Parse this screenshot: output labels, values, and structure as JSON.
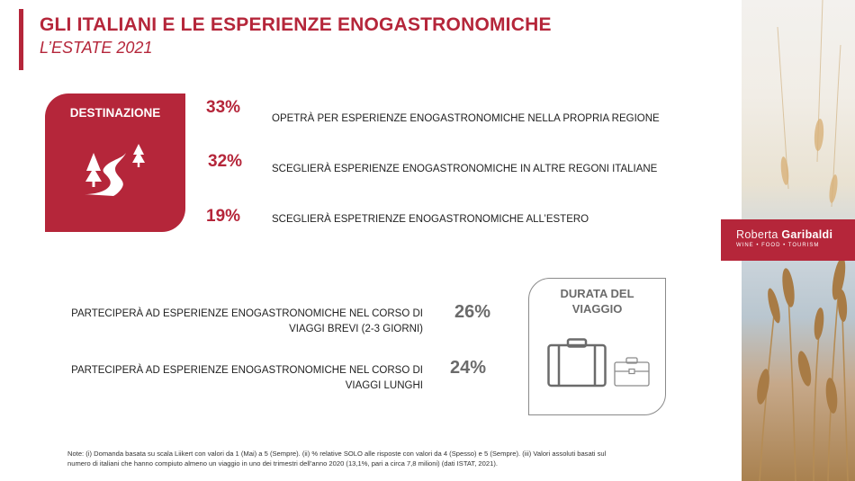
{
  "header": {
    "title": "GLI ITALIANI E LE ESPERIENZE ENOGASTRONOMICHE",
    "subtitle": "L’ESTATE 2021"
  },
  "destination": {
    "label": "DESTINAZIONE",
    "icon": "winding-road-trees-icon",
    "items": [
      {
        "percent": "33%",
        "text": "OPETRÀ PER ESPERIENZE ENOGASTRONOMICHE NELLA PROPRIA REGIONE"
      },
      {
        "percent": "32%",
        "text": "SCEGLIERÀ ESPERIENZE ENOGASTRONOMICHE IN ALTRE REGONI ITALIANE"
      },
      {
        "percent": "19%",
        "text": "SCEGLIERÀ ESPETRIENZE ENOGASTRONOMICHE ALL’ESTERO"
      }
    ]
  },
  "duration": {
    "label_line1": "DURATA DEL",
    "label_line2": "VIAGGIO",
    "icons": [
      "suitcase-icon",
      "briefcase-icon"
    ],
    "items": [
      {
        "line1": "PARTECIPERÀ AD ESPERIENZE ENOGASTRONOMICHE NEL CORSO DI",
        "line2": "VIAGGI BREVI (2-3 GIORNI)",
        "percent": "26%"
      },
      {
        "line1": "PARTECIPERÀ AD ESPERIENZE ENOGASTRONOMICHE NEL CORSO DI",
        "line2": "VIAGGI LUNGHI",
        "percent": "24%"
      }
    ]
  },
  "note": {
    "line1": "Note: (i) Domanda basata su scala Liikert con valori da 1 (Mai) a 5 (Sempre). (ii) % relative SOLO alle risposte con valori da 4 (Spesso) e 5 (Sempre). (iii) Valori assoluti basati sul",
    "line2": "numero di italiani che hanno compiuto almeno un viaggio in uno dei trimestri dell’anno 2020 (13,1%, pari a circa 7,8 milioni) (dati ISTAT, 2021)."
  },
  "brand": {
    "first_name": "Roberta",
    "last_name": "Garibaldi",
    "tagline": "WINE • FOOD • TOURISM"
  },
  "colors": {
    "accent": "#b5263a",
    "grey": "#6b6b6b"
  }
}
